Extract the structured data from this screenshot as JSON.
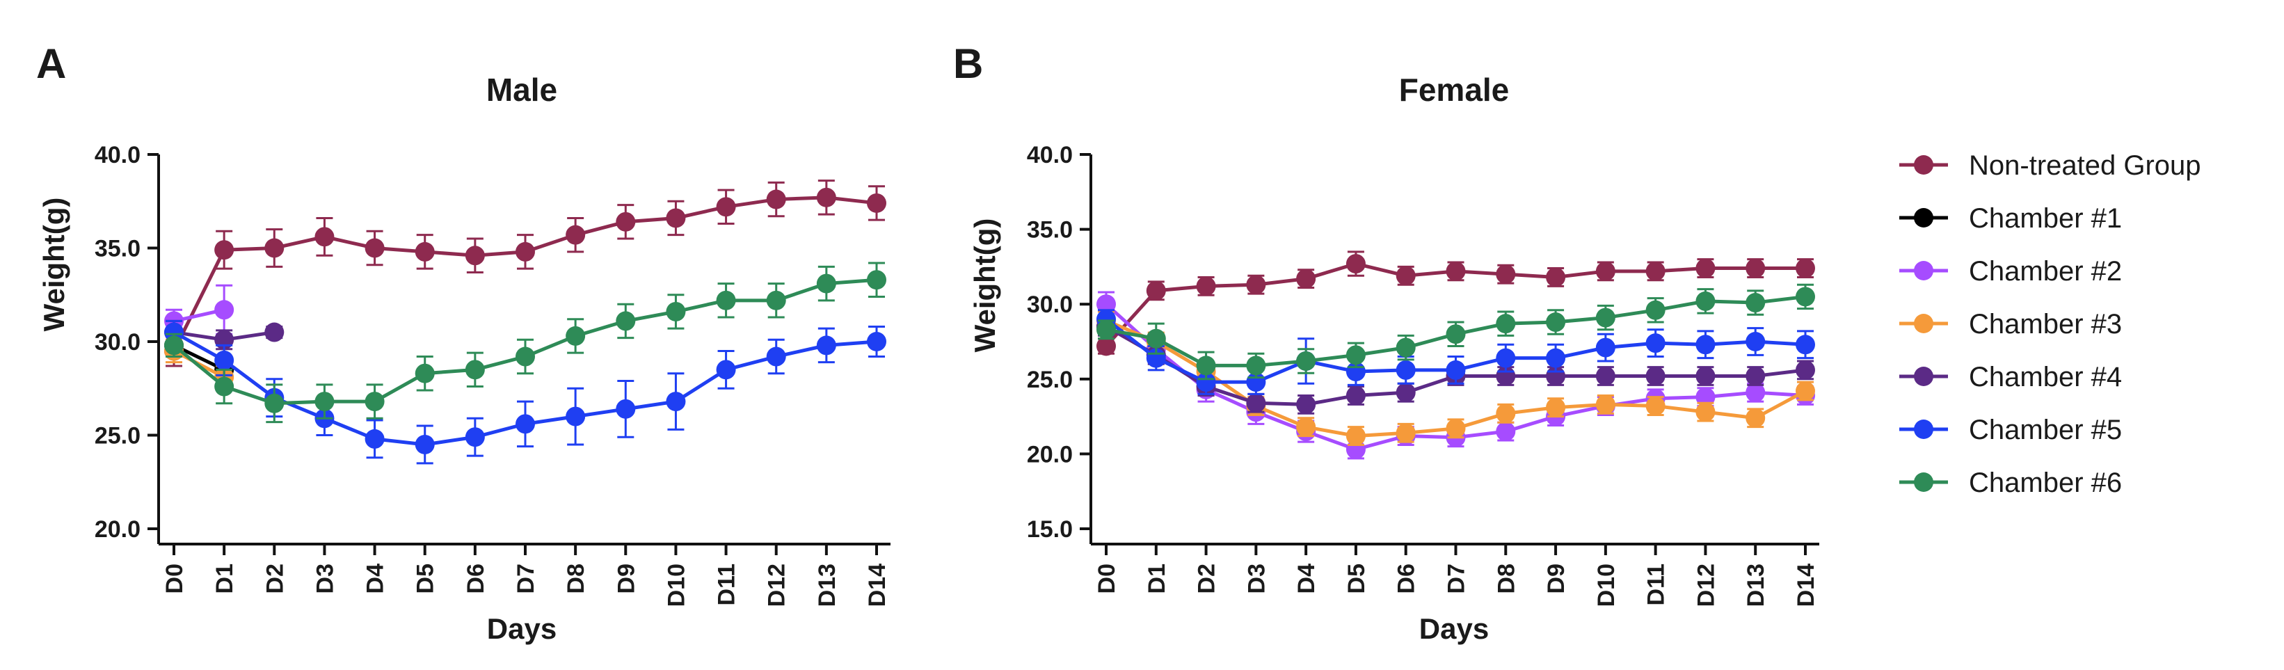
{
  "figure": {
    "panels": [
      "A",
      "B"
    ],
    "legend": [
      {
        "name": "Non-treated Group",
        "color": "#8e2a4f"
      },
      {
        "name": "Chamber #1",
        "color": "#000000"
      },
      {
        "name": "Chamber #2",
        "color": "#a64cff"
      },
      {
        "name": "Chamber #3",
        "color": "#f59a3a"
      },
      {
        "name": "Chamber #4",
        "color": "#5b2a86"
      },
      {
        "name": "Chamber #5",
        "color": "#1f3ff2"
      },
      {
        "name": "Chamber #6",
        "color": "#2e8b57"
      }
    ]
  },
  "chart_data": [
    {
      "type": "line",
      "title": "Male",
      "xlabel": "Days",
      "ylabel": "Weight(g)",
      "categories": [
        "D0",
        "D1",
        "D2",
        "D3",
        "D4",
        "D5",
        "D6",
        "D7",
        "D8",
        "D9",
        "D10",
        "D11",
        "D12",
        "D13",
        "D14"
      ],
      "ylim": [
        20,
        40
      ],
      "yticks": [
        "20.0",
        "25.0",
        "30.0",
        "35.0",
        "40.0"
      ],
      "series": [
        {
          "name": "Non-treated Group",
          "color": "#8e2a4f",
          "values": [
            29.5,
            34.9,
            35.0,
            35.6,
            35.0,
            34.8,
            34.6,
            34.8,
            35.7,
            36.4,
            36.6,
            37.2,
            37.6,
            37.7,
            37.4
          ],
          "errors": [
            0.8,
            1.0,
            1.0,
            1.0,
            0.9,
            0.9,
            0.9,
            0.9,
            0.9,
            0.9,
            0.9,
            0.9,
            0.9,
            0.9,
            0.9
          ]
        },
        {
          "name": "Chamber #1",
          "color": "#000000",
          "values": [
            29.8,
            28.5,
            null,
            null,
            null,
            null,
            null,
            null,
            null,
            null,
            null,
            null,
            null,
            null,
            null
          ],
          "errors": [
            0.6,
            0.5,
            null,
            null,
            null,
            null,
            null,
            null,
            null,
            null,
            null,
            null,
            null,
            null,
            null
          ]
        },
        {
          "name": "Chamber #2",
          "color": "#a64cff",
          "values": [
            31.1,
            31.7,
            null,
            null,
            null,
            null,
            null,
            null,
            null,
            null,
            null,
            null,
            null,
            null,
            null
          ],
          "errors": [
            0.6,
            1.3,
            null,
            null,
            null,
            null,
            null,
            null,
            null,
            null,
            null,
            null,
            null,
            null,
            null
          ]
        },
        {
          "name": "Chamber #3",
          "color": "#f59a3a",
          "values": [
            29.5,
            28.1,
            null,
            null,
            null,
            null,
            null,
            null,
            null,
            null,
            null,
            null,
            null,
            null,
            null
          ],
          "errors": [
            0.6,
            0.6,
            null,
            null,
            null,
            null,
            null,
            null,
            null,
            null,
            null,
            null,
            null,
            null,
            null
          ]
        },
        {
          "name": "Chamber #4",
          "color": "#5b2a86",
          "values": [
            30.5,
            30.1,
            30.5,
            null,
            null,
            null,
            null,
            null,
            null,
            null,
            null,
            null,
            null,
            null,
            null
          ],
          "errors": [
            0.6,
            0.5,
            0.3,
            null,
            null,
            null,
            null,
            null,
            null,
            null,
            null,
            null,
            null,
            null,
            null
          ]
        },
        {
          "name": "Chamber #5",
          "color": "#1f3ff2",
          "values": [
            30.5,
            29.0,
            27.0,
            25.9,
            24.8,
            24.5,
            24.9,
            25.6,
            26.0,
            26.4,
            26.8,
            28.5,
            29.2,
            29.8,
            30.0
          ],
          "errors": [
            0.6,
            0.8,
            1.0,
            0.9,
            1.0,
            1.0,
            1.0,
            1.2,
            1.5,
            1.5,
            1.5,
            1.0,
            0.9,
            0.9,
            0.8
          ]
        },
        {
          "name": "Chamber #6",
          "color": "#2e8b57",
          "values": [
            29.8,
            27.6,
            26.7,
            26.8,
            26.8,
            28.3,
            28.5,
            29.2,
            30.3,
            31.1,
            31.6,
            32.2,
            32.2,
            33.1,
            33.3
          ],
          "errors": [
            0.6,
            0.9,
            1.0,
            0.9,
            0.9,
            0.9,
            0.9,
            0.9,
            0.9,
            0.9,
            0.9,
            0.9,
            0.9,
            0.9,
            0.9
          ]
        }
      ]
    },
    {
      "type": "line",
      "title": "Female",
      "xlabel": "Days",
      "ylabel": "Weight(g)",
      "categories": [
        "D0",
        "D1",
        "D2",
        "D3",
        "D4",
        "D5",
        "D6",
        "D7",
        "D8",
        "D9",
        "D10",
        "D11",
        "D12",
        "D13",
        "D14"
      ],
      "ylim": [
        15,
        40
      ],
      "yticks": [
        "15.0",
        "20.0",
        "25.0",
        "30.0",
        "35.0",
        "40.0"
      ],
      "series": [
        {
          "name": "Non-treated Group",
          "color": "#8e2a4f",
          "values": [
            27.2,
            30.9,
            31.2,
            31.3,
            31.7,
            32.7,
            31.9,
            32.2,
            32.0,
            31.8,
            32.2,
            32.2,
            32.4,
            32.4,
            32.4
          ],
          "errors": [
            0.5,
            0.6,
            0.6,
            0.6,
            0.6,
            0.8,
            0.6,
            0.6,
            0.6,
            0.6,
            0.6,
            0.6,
            0.6,
            0.6,
            0.6
          ]
        },
        {
          "name": "Chamber #1",
          "color": "#000000",
          "values": [
            28.5,
            null,
            null,
            null,
            null,
            null,
            null,
            null,
            null,
            null,
            null,
            null,
            null,
            null,
            null
          ],
          "errors": [
            0.5,
            null,
            null,
            null,
            null,
            null,
            null,
            null,
            null,
            null,
            null,
            null,
            null,
            null,
            null
          ]
        },
        {
          "name": "Chamber #2",
          "color": "#a64cff",
          "values": [
            30.0,
            27.0,
            24.3,
            22.8,
            21.5,
            20.3,
            21.2,
            21.1,
            21.5,
            22.5,
            23.2,
            23.7,
            23.8,
            24.1,
            23.9
          ],
          "errors": [
            0.8,
            0.8,
            0.8,
            0.8,
            0.7,
            0.6,
            0.6,
            0.6,
            0.6,
            0.6,
            0.6,
            0.6,
            0.6,
            0.6,
            0.6
          ]
        },
        {
          "name": "Chamber #3",
          "color": "#f59a3a",
          "values": [
            28.9,
            27.5,
            25.5,
            23.2,
            21.8,
            21.2,
            21.4,
            21.7,
            22.7,
            23.1,
            23.3,
            23.2,
            22.8,
            22.4,
            24.2
          ],
          "errors": [
            0.6,
            0.6,
            0.6,
            0.6,
            0.6,
            0.6,
            0.6,
            0.6,
            0.6,
            0.6,
            0.6,
            0.6,
            0.6,
            0.6,
            0.6
          ]
        },
        {
          "name": "Chamber #4",
          "color": "#5b2a86",
          "values": [
            28.5,
            26.6,
            24.5,
            23.4,
            23.3,
            23.9,
            24.1,
            25.2,
            25.2,
            25.2,
            25.2,
            25.2,
            25.2,
            25.2,
            25.6
          ],
          "errors": [
            0.6,
            0.6,
            0.6,
            0.6,
            0.6,
            0.6,
            0.6,
            0.6,
            0.6,
            0.6,
            0.6,
            0.6,
            0.6,
            0.6,
            0.6
          ]
        },
        {
          "name": "Chamber #5",
          "color": "#1f3ff2",
          "values": [
            29.0,
            26.4,
            24.8,
            24.8,
            26.2,
            25.5,
            25.6,
            25.6,
            26.4,
            26.4,
            27.1,
            27.4,
            27.3,
            27.5,
            27.3
          ],
          "errors": [
            0.6,
            0.8,
            0.8,
            0.8,
            1.5,
            0.9,
            0.9,
            0.9,
            0.9,
            0.9,
            0.9,
            0.9,
            0.9,
            0.9,
            0.9
          ]
        },
        {
          "name": "Chamber #6",
          "color": "#2e8b57",
          "values": [
            28.3,
            27.7,
            25.9,
            25.9,
            26.2,
            26.6,
            27.1,
            28.0,
            28.7,
            28.8,
            29.1,
            29.6,
            30.2,
            30.1,
            30.5
          ],
          "errors": [
            0.6,
            1.0,
            0.9,
            0.8,
            0.8,
            0.8,
            0.8,
            0.8,
            0.8,
            0.8,
            0.8,
            0.8,
            0.8,
            0.8,
            0.8
          ]
        }
      ]
    }
  ]
}
